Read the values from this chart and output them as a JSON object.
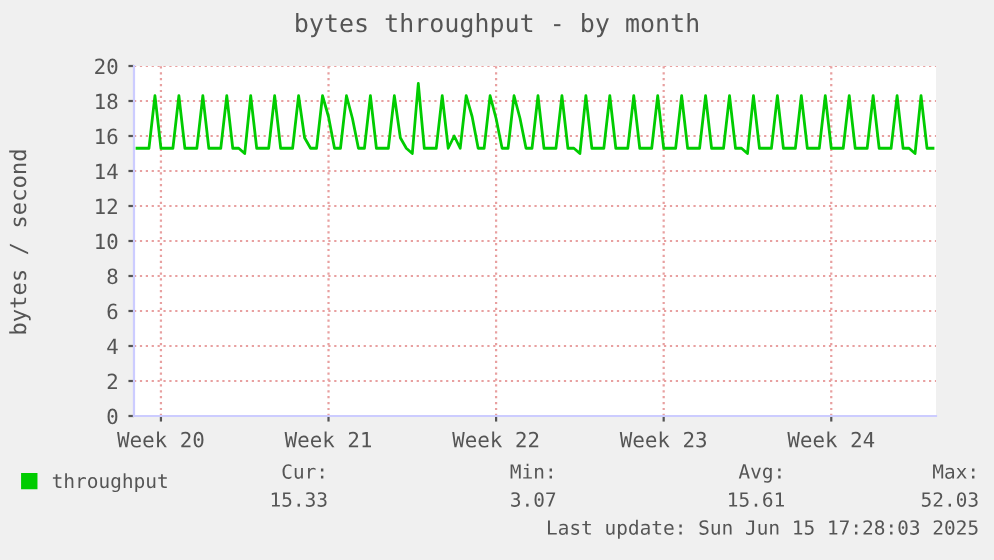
{
  "chart_data": {
    "type": "line",
    "title": "bytes throughput - by month",
    "ylabel": "bytes / second",
    "categories": [
      null,
      null,
      null,
      null,
      "Week 20",
      null,
      null,
      null,
      null,
      null,
      null,
      null,
      null,
      null,
      null,
      null,
      null,
      null,
      null,
      null,
      null,
      null,
      null,
      null,
      null,
      null,
      null,
      null,
      null,
      null,
      null,
      null,
      "Week 21",
      null,
      null,
      null,
      null,
      null,
      null,
      null,
      null,
      null,
      null,
      null,
      null,
      null,
      null,
      null,
      null,
      null,
      null,
      null,
      null,
      null,
      null,
      null,
      null,
      null,
      null,
      null,
      "Week 22",
      null,
      null,
      null,
      null,
      null,
      null,
      null,
      null,
      null,
      null,
      null,
      null,
      null,
      null,
      null,
      null,
      null,
      null,
      null,
      null,
      null,
      null,
      null,
      null,
      null,
      null,
      null,
      "Week 23",
      null,
      null,
      null,
      null,
      null,
      null,
      null,
      null,
      null,
      null,
      null,
      null,
      null,
      null,
      null,
      null,
      null,
      null,
      null,
      null,
      null,
      null,
      null,
      null,
      null,
      null,
      null,
      "Week 24",
      null,
      null,
      null,
      null,
      null,
      null,
      null,
      null,
      null,
      null,
      null,
      null,
      null,
      null,
      null,
      null,
      null
    ],
    "series": [
      {
        "name": "throughput",
        "color": "#00cc00",
        "values": [
          15.3,
          15.3,
          15.3,
          18.3,
          15.3,
          15.3,
          15.3,
          18.3,
          15.3,
          15.3,
          15.3,
          18.3,
          15.3,
          15.3,
          15.3,
          18.3,
          15.3,
          15.3,
          15.0,
          18.3,
          15.3,
          15.3,
          15.3,
          18.3,
          15.3,
          15.3,
          15.3,
          18.3,
          15.9,
          15.3,
          15.3,
          18.3,
          17.1,
          15.3,
          15.3,
          18.3,
          17.0,
          15.3,
          15.3,
          18.3,
          15.3,
          15.3,
          15.3,
          18.3,
          15.9,
          15.3,
          15.0,
          19.0,
          15.3,
          15.3,
          15.3,
          18.3,
          15.3,
          16.0,
          15.3,
          18.3,
          17.1,
          15.3,
          15.3,
          18.3,
          17.0,
          15.3,
          15.3,
          18.3,
          17.0,
          15.3,
          15.3,
          18.3,
          15.3,
          15.3,
          15.3,
          18.3,
          15.3,
          15.3,
          15.0,
          18.3,
          15.3,
          15.3,
          15.3,
          18.3,
          15.3,
          15.3,
          15.3,
          18.3,
          15.3,
          15.3,
          15.3,
          18.3,
          15.3,
          15.3,
          15.3,
          18.3,
          15.3,
          15.3,
          15.3,
          18.3,
          15.3,
          15.3,
          15.3,
          18.3,
          15.3,
          15.3,
          15.0,
          18.3,
          15.3,
          15.3,
          15.3,
          18.3,
          15.3,
          15.3,
          15.3,
          18.3,
          15.3,
          15.3,
          15.3,
          18.3,
          15.3,
          15.3,
          15.3,
          18.3,
          15.3,
          15.3,
          15.3,
          18.3,
          15.3,
          15.3,
          15.3,
          18.3,
          15.3,
          15.3,
          15.0,
          18.3,
          15.3,
          15.3
        ]
      }
    ],
    "ylim": [
      0,
      20
    ],
    "yticks": [
      0,
      2,
      4,
      6,
      8,
      10,
      12,
      14,
      16,
      18,
      20
    ],
    "grid": true,
    "legend": "bottom",
    "marker": "none",
    "line_style": "solid",
    "annotations": [
      "Cur:",
      "Min:",
      "Avg:",
      "Max:",
      "15.33",
      "3.07",
      "15.61",
      "52.03",
      "Last update: Sun Jun 15 17:28:03 2025"
    ]
  }
}
